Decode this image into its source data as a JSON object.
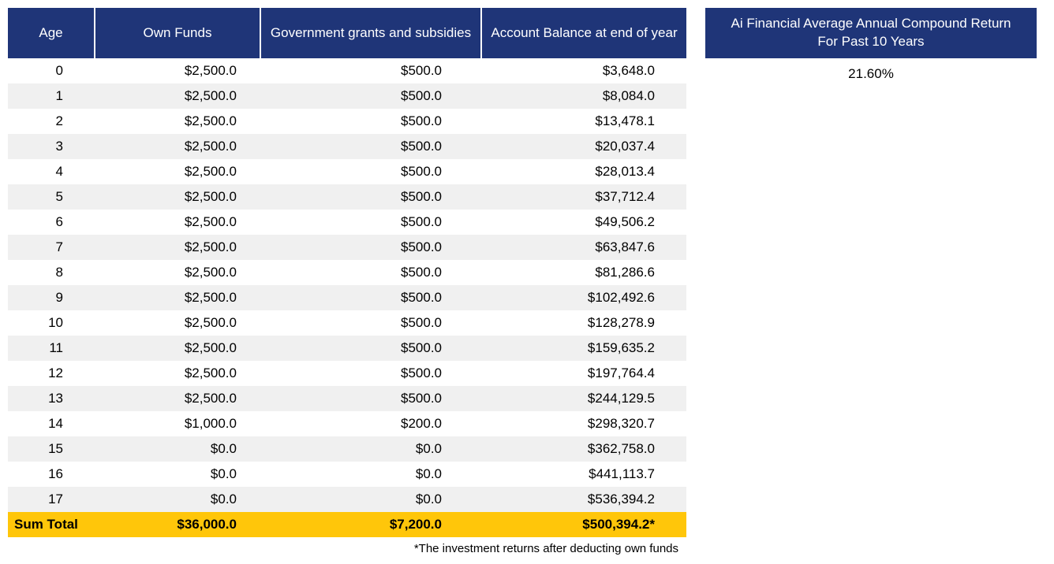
{
  "table": {
    "header_bg": "#1f3578",
    "header_fg": "#ffffff",
    "row_even_bg": "#ffffff",
    "row_odd_bg": "#f0f0f0",
    "sum_bg": "#ffc60a",
    "columns": {
      "age": "Age",
      "own_funds": "Own Funds",
      "grants": "Government grants and subsidies",
      "balance": "Account Balance at end of year"
    },
    "rows": [
      {
        "age": "0",
        "own": "$2,500.0",
        "grant": "$500.0",
        "bal": "$3,648.0"
      },
      {
        "age": "1",
        "own": "$2,500.0",
        "grant": "$500.0",
        "bal": "$8,084.0"
      },
      {
        "age": "2",
        "own": "$2,500.0",
        "grant": "$500.0",
        "bal": "$13,478.1"
      },
      {
        "age": "3",
        "own": "$2,500.0",
        "grant": "$500.0",
        "bal": "$20,037.4"
      },
      {
        "age": "4",
        "own": "$2,500.0",
        "grant": "$500.0",
        "bal": "$28,013.4"
      },
      {
        "age": "5",
        "own": "$2,500.0",
        "grant": "$500.0",
        "bal": "$37,712.4"
      },
      {
        "age": "6",
        "own": "$2,500.0",
        "grant": "$500.0",
        "bal": "$49,506.2"
      },
      {
        "age": "7",
        "own": "$2,500.0",
        "grant": "$500.0",
        "bal": "$63,847.6"
      },
      {
        "age": "8",
        "own": "$2,500.0",
        "grant": "$500.0",
        "bal": "$81,286.6"
      },
      {
        "age": "9",
        "own": "$2,500.0",
        "grant": "$500.0",
        "bal": "$102,492.6"
      },
      {
        "age": "10",
        "own": "$2,500.0",
        "grant": "$500.0",
        "bal": "$128,278.9"
      },
      {
        "age": "11",
        "own": "$2,500.0",
        "grant": "$500.0",
        "bal": "$159,635.2"
      },
      {
        "age": "12",
        "own": "$2,500.0",
        "grant": "$500.0",
        "bal": "$197,764.4"
      },
      {
        "age": "13",
        "own": "$2,500.0",
        "grant": "$500.0",
        "bal": "$244,129.5"
      },
      {
        "age": "14",
        "own": "$1,000.0",
        "grant": "$200.0",
        "bal": "$298,320.7"
      },
      {
        "age": "15",
        "own": "$0.0",
        "grant": "$0.0",
        "bal": "$362,758.0"
      },
      {
        "age": "16",
        "own": "$0.0",
        "grant": "$0.0",
        "bal": "$441,113.7"
      },
      {
        "age": "17",
        "own": "$0.0",
        "grant": "$0.0",
        "bal": "$536,394.2"
      }
    ],
    "sum": {
      "label": "Sum Total",
      "own": "$36,000.0",
      "grant": "$7,200.0",
      "bal": "$500,394.2*"
    },
    "footnote": "*The investment returns after deducting own funds"
  },
  "side": {
    "header": "Ai Financial Average Annual Compound Return For Past 10 Years",
    "value": "21.60%"
  }
}
